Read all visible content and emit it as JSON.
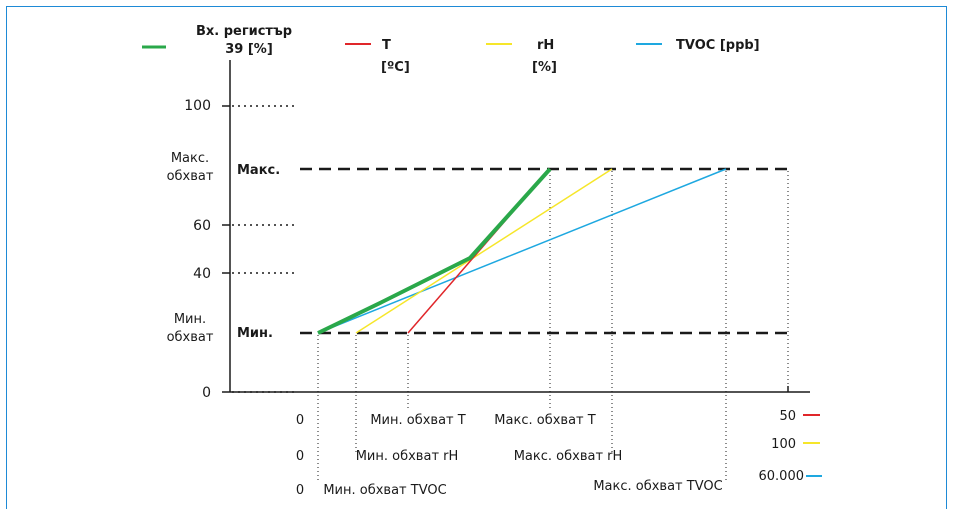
{
  "legend": [
    {
      "key": "input",
      "label_lines": [
        "Вх. регистър",
        "39 [%]"
      ],
      "color": "#2aa84a"
    },
    {
      "key": "t",
      "label_lines": [
        "T",
        "[ºC]"
      ],
      "color": "#e0262a"
    },
    {
      "key": "rh",
      "label_lines": [
        "rH",
        "[%]"
      ],
      "color": "#f6e62a"
    },
    {
      "key": "tvoc",
      "label_lines": [
        "TVOC [ppb]"
      ],
      "color": "#1ea8e0"
    }
  ],
  "y_ticks": {
    "v100": "100",
    "v60": "60",
    "v40": "40",
    "v0": "0"
  },
  "left_labels": {
    "max_range_lines": [
      "Макс.",
      "обхват"
    ],
    "min_range_lines": [
      "Мин.",
      "обхват"
    ],
    "max_level": "Макс.",
    "min_level": "Мин."
  },
  "x_labels": {
    "min_t": "Мин. обхват T",
    "max_t": "Макс. обхват T",
    "min_rh": "Мин. обхват rH",
    "max_rh": "Макс. обхват rH",
    "min_tvoc": "Мин. обхват TVOC",
    "max_tvoc": "Макс. обхват TVOC"
  },
  "x_zeros": {
    "row1": "0",
    "row2": "0",
    "row3": "0"
  },
  "x_end_values": [
    {
      "key": "t",
      "value": "50",
      "color": "#e0262a"
    },
    {
      "key": "rh",
      "value": "100",
      "color": "#f6e62a"
    },
    {
      "key": "tvoc",
      "value": "60.000",
      "color": "#1ea8e0"
    }
  ],
  "colors": {
    "input": "#2aa84a",
    "t": "#e0262a",
    "rh": "#f6e62a",
    "tvoc": "#1ea8e0",
    "frame": "#1e8ad6",
    "axis": "#1a1a1a"
  }
}
